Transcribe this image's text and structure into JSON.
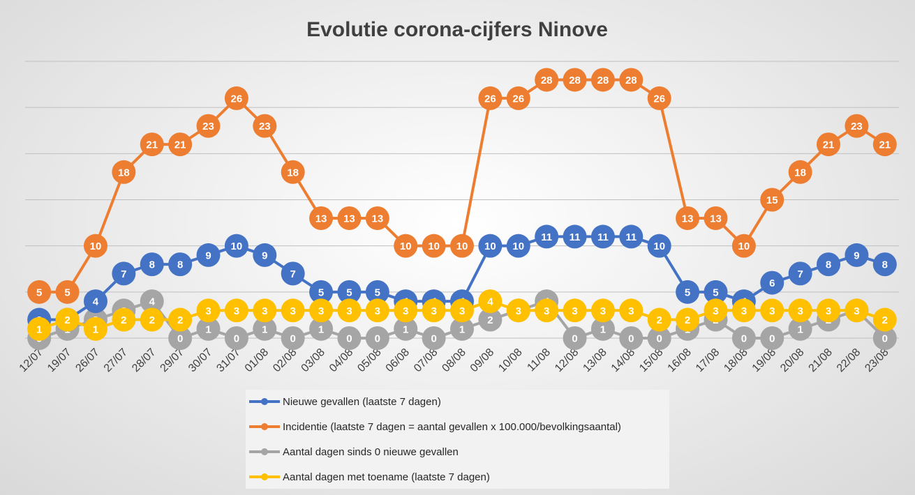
{
  "chart_data": {
    "type": "line",
    "title": "Evolutie corona-cijfers Ninove",
    "xlabel": "",
    "ylabel": "",
    "ylim": [
      0,
      30
    ],
    "grid": true,
    "legend_position": "bottom",
    "categories": [
      "12/07",
      "19/07",
      "26/07",
      "27/07",
      "28/07",
      "29/07",
      "30/07",
      "31/07",
      "01/08",
      "02/08",
      "03/08",
      "04/08",
      "05/08",
      "06/08",
      "07/08",
      "08/08",
      "09/08",
      "10/08",
      "11/08",
      "12/08",
      "13/08",
      "14/08",
      "15/08",
      "16/08",
      "17/08",
      "18/08",
      "19/08",
      "20/08",
      "21/08",
      "22/08",
      "23/08"
    ],
    "series": [
      {
        "name": "Nieuwe gevallen (laatste 7 dagen)",
        "color": "#4472c4",
        "values": [
          2,
          2,
          4,
          7,
          8,
          8,
          9,
          10,
          9,
          7,
          5,
          5,
          5,
          4,
          4,
          4,
          10,
          10,
          11,
          11,
          11,
          11,
          10,
          5,
          5,
          4,
          6,
          7,
          8,
          9,
          8
        ]
      },
      {
        "name": "Incidentie (laatste 7 dagen = aantal gevallen x 100.000/bevolkingsaantal)",
        "color": "#ed7d31",
        "values": [
          5,
          5,
          10,
          18,
          21,
          21,
          23,
          26,
          23,
          18,
          13,
          13,
          13,
          10,
          10,
          10,
          26,
          26,
          28,
          28,
          28,
          28,
          26,
          13,
          13,
          10,
          15,
          18,
          21,
          23,
          21
        ]
      },
      {
        "name": "Aantal dagen sinds 0 nieuwe gevallen",
        "color": "#a5a5a5",
        "values": [
          0,
          1,
          2,
          3,
          4,
          0,
          1,
          0,
          1,
          0,
          1,
          0,
          0,
          1,
          0,
          1,
          2,
          3,
          4,
          0,
          1,
          0,
          0,
          1,
          2,
          0,
          0,
          1,
          2,
          3,
          0
        ]
      },
      {
        "name": "Aantal dagen met toename (laatste 7 dagen)",
        "color": "#ffc000",
        "values": [
          1,
          2,
          1,
          2,
          2,
          2,
          3,
          3,
          3,
          3,
          3,
          3,
          3,
          3,
          3,
          3,
          4,
          3,
          3,
          3,
          3,
          3,
          2,
          2,
          3,
          3,
          3,
          3,
          3,
          3,
          2
        ]
      }
    ]
  }
}
